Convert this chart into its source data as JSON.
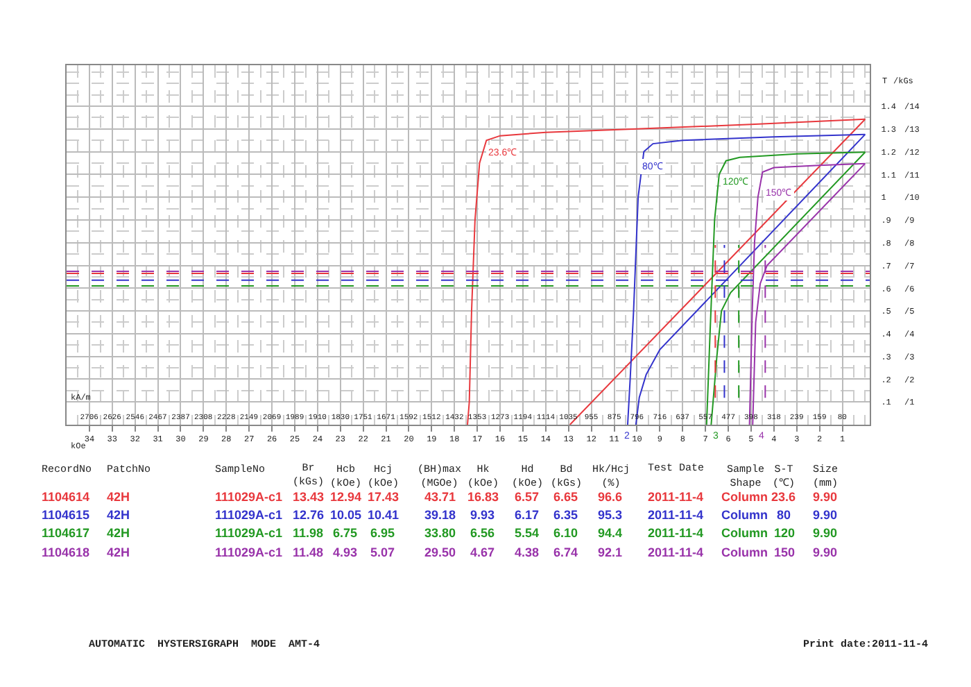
{
  "chart_data": {
    "type": "line",
    "xlabel": "kOe",
    "x2label": "kA/m",
    "ylabel": "T",
    "y2label": "/kGs",
    "xlim": [
      35,
      -0.2
    ],
    "xticks": [
      1,
      2,
      3,
      4,
      5,
      6,
      7,
      8,
      9,
      10,
      11,
      12,
      13,
      14,
      15,
      16,
      17,
      18,
      19,
      20,
      21,
      22,
      23,
      24,
      25,
      26,
      27,
      28,
      29,
      30,
      31,
      32,
      33,
      34
    ],
    "x2lim": [
      2785,
      -16
    ],
    "x2ticks": [
      80,
      159,
      239,
      318,
      398,
      477,
      557,
      637,
      716,
      796,
      875,
      955,
      1035,
      1114,
      1194,
      1273,
      1353,
      1432,
      1512,
      1592,
      1671,
      1751,
      1830,
      1910,
      1989,
      2069,
      2149,
      2228,
      2308,
      2387,
      2467,
      2546,
      2626,
      2706
    ],
    "ylim": [
      0,
      1.58
    ],
    "yticks": [
      {
        "value": 0.1,
        "label": ".1"
      },
      {
        "value": 0.2,
        "label": ".2"
      },
      {
        "value": 0.3,
        "label": ".3"
      },
      {
        "value": 0.4,
        "label": ".4"
      },
      {
        "value": 0.5,
        "label": ".5"
      },
      {
        "value": 0.6,
        "label": ".6"
      },
      {
        "value": 0.7,
        "label": ".7"
      },
      {
        "value": 0.8,
        "label": ".8"
      },
      {
        "value": 0.9,
        "label": ".9"
      },
      1,
      1.1,
      1.2,
      1.3,
      1.4
    ],
    "y2lim": [
      0,
      15.8
    ],
    "y2ticks": [
      {
        "value": 1,
        "label": "/1"
      },
      {
        "value": 2,
        "label": "/2"
      },
      {
        "value": 3,
        "label": "/3"
      },
      {
        "value": 4,
        "label": "/4"
      },
      {
        "value": 5,
        "label": "/5"
      },
      {
        "value": 6,
        "label": "/6"
      },
      {
        "value": 7,
        "label": "/7"
      },
      {
        "value": 8,
        "label": "/8"
      },
      {
        "value": 9,
        "label": "/9"
      },
      {
        "value": 10,
        "label": "/10"
      },
      {
        "value": 11,
        "label": "/11"
      },
      {
        "value": 12,
        "label": "/12"
      },
      {
        "value": 13,
        "label": "/13"
      },
      {
        "value": 14,
        "label": "/14"
      }
    ],
    "grid": true,
    "marker": "none",
    "line_style": "solid",
    "series": [
      {
        "color": "#e8383d",
        "x": [
          0,
          5,
          10,
          14,
          16,
          16.6,
          16.9,
          17.1,
          17.25,
          17.35,
          17.43
        ],
        "values": [
          1.343,
          1.32,
          1.3,
          1.285,
          1.27,
          1.25,
          1.15,
          0.9,
          0.5,
          0.1,
          0
        ]
      },
      {
        "color": "#e8383d",
        "x": [
          0,
          12.94
        ],
        "values": [
          1.343,
          0
        ]
      },
      {
        "color": "#3333cc",
        "x": [
          0,
          4,
          8,
          9.3,
          9.7,
          9.95,
          10.15,
          10.3,
          10.41
        ],
        "values": [
          1.276,
          1.265,
          1.25,
          1.235,
          1.2,
          1.0,
          0.5,
          0.2,
          0
        ]
      },
      {
        "color": "#3333cc",
        "x": [
          0,
          9.0,
          9.6,
          9.9,
          10.05
        ],
        "values": [
          1.276,
          0.33,
          0.22,
          0.12,
          0
        ]
      },
      {
        "color": "#229922",
        "x": [
          0,
          3,
          5.5,
          6.1,
          6.4,
          6.6,
          6.8,
          6.95
        ],
        "values": [
          1.198,
          1.19,
          1.175,
          1.16,
          1.1,
          0.9,
          0.4,
          0
        ]
      },
      {
        "color": "#229922",
        "x": [
          0,
          5.9,
          6.3,
          6.5,
          6.75
        ],
        "values": [
          1.198,
          0.58,
          0.5,
          0.3,
          0
        ]
      },
      {
        "color": "#9933aa",
        "x": [
          0,
          2,
          4,
          4.5,
          4.7,
          4.85,
          4.95,
          5.07
        ],
        "values": [
          1.148,
          1.14,
          1.13,
          1.11,
          1.0,
          0.8,
          0.5,
          0
        ]
      },
      {
        "color": "#9933aa",
        "x": [
          0,
          4.3,
          4.6,
          4.8,
          4.93
        ],
        "values": [
          1.148,
          0.7,
          0.62,
          0.45,
          0
        ]
      }
    ],
    "ref_lines": [
      {
        "axis": "y",
        "value": 0.665,
        "color": "#e8383d",
        "line_style": "dashed"
      },
      {
        "axis": "y",
        "value": 0.635,
        "color": "#3333cc",
        "line_style": "dashed"
      },
      {
        "axis": "y",
        "value": 0.61,
        "color": "#229922",
        "line_style": "dashed"
      },
      {
        "axis": "y",
        "value": 0.674,
        "color": "#9933aa",
        "line_style": "dashed"
      },
      {
        "axis": "x",
        "value": 6.57,
        "color": "#e8383d",
        "line_style": "dashed"
      },
      {
        "axis": "x",
        "value": 6.17,
        "color": "#3333cc",
        "line_style": "dashed"
      },
      {
        "axis": "x",
        "value": 5.54,
        "color": "#229922",
        "line_style": "dashed"
      },
      {
        "axis": "x",
        "value": 4.38,
        "color": "#9933aa",
        "line_style": "dashed"
      }
    ],
    "annotations": [
      "RecordNo",
      "PatchNo",
      "SampleNo",
      "Br\n(kGs)",
      "Hcb\n(kOe)",
      "Hcj\n(kOe)",
      "(BH)max\n(MGOe)",
      "Hk\n(kOe)",
      "Hd\n(kOe)",
      "Bd\n(kGs)",
      "Hk/Hcj\n(%)",
      "Test Date",
      "Sample\nShape",
      "S-T\n(℃)",
      "Size\n(mm)",
      "1104614",
      "42H",
      "111029A-c1",
      "13.43",
      "12.94",
      "17.43",
      "43.71",
      "16.83",
      "6.57",
      "6.65",
      "96.6",
      "2011-11-4",
      "Column",
      "23.6",
      "9.90",
      "1104615",
      "42H",
      "111029A-c1",
      "12.76",
      "10.05",
      "10.41",
      "39.18",
      "9.93",
      "6.17",
      "6.35",
      "95.3",
      "2011-11-4",
      "Column",
      "80",
      "9.90",
      "1104617",
      "42H",
      "111029A-c1",
      "11.98",
      "6.75",
      "6.95",
      "33.80",
      "6.56",
      "5.54",
      "6.10",
      "94.4",
      "2011-11-4",
      "Column",
      "120",
      "9.90",
      "1104618",
      "42H",
      "111029A-c1",
      "11.48",
      "4.93",
      "5.07",
      "29.50",
      "4.67",
      "4.38",
      "6.74",
      "92.1",
      "2011-11-4",
      "Column",
      "150",
      "9.90",
      "AUTOMATIC  HYSTERSIGRAPH  MODE  AMT-4",
      "Print date:2011-11-4",
      "23.6℃",
      "80℃",
      "120℃",
      "150℃",
      "2",
      "3",
      "4"
    ]
  }
}
